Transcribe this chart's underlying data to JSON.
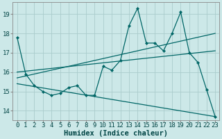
{
  "title": "",
  "xlabel": "Humidex (Indice chaleur)",
  "bg_color": "#cce8e8",
  "grid_color": "#aacccc",
  "line_color": "#006666",
  "xlim": [
    -0.5,
    23.5
  ],
  "ylim": [
    13.5,
    19.6
  ],
  "xticks": [
    0,
    1,
    2,
    3,
    4,
    5,
    6,
    7,
    8,
    9,
    10,
    11,
    12,
    13,
    14,
    15,
    16,
    17,
    18,
    19,
    20,
    21,
    22,
    23
  ],
  "yticks": [
    14,
    15,
    16,
    17,
    18,
    19
  ],
  "data_x": [
    0,
    1,
    2,
    3,
    4,
    5,
    6,
    7,
    8,
    9,
    10,
    11,
    12,
    13,
    14,
    15,
    16,
    17,
    18,
    19,
    20,
    21,
    22,
    23
  ],
  "data_y": [
    17.8,
    15.9,
    15.3,
    15.0,
    14.8,
    14.9,
    15.2,
    15.3,
    14.8,
    14.8,
    16.3,
    16.1,
    16.6,
    18.4,
    19.3,
    17.5,
    17.5,
    17.1,
    18.0,
    19.1,
    17.0,
    16.5,
    15.1,
    13.7
  ],
  "trend1_x": [
    0,
    23
  ],
  "trend1_y": [
    15.7,
    18.0
  ],
  "trend2_x": [
    0,
    23
  ],
  "trend2_y": [
    16.0,
    17.1
  ],
  "trend3_x": [
    0,
    23
  ],
  "trend3_y": [
    15.4,
    13.7
  ],
  "tick_fontsize": 6.5,
  "label_fontsize": 7.5
}
